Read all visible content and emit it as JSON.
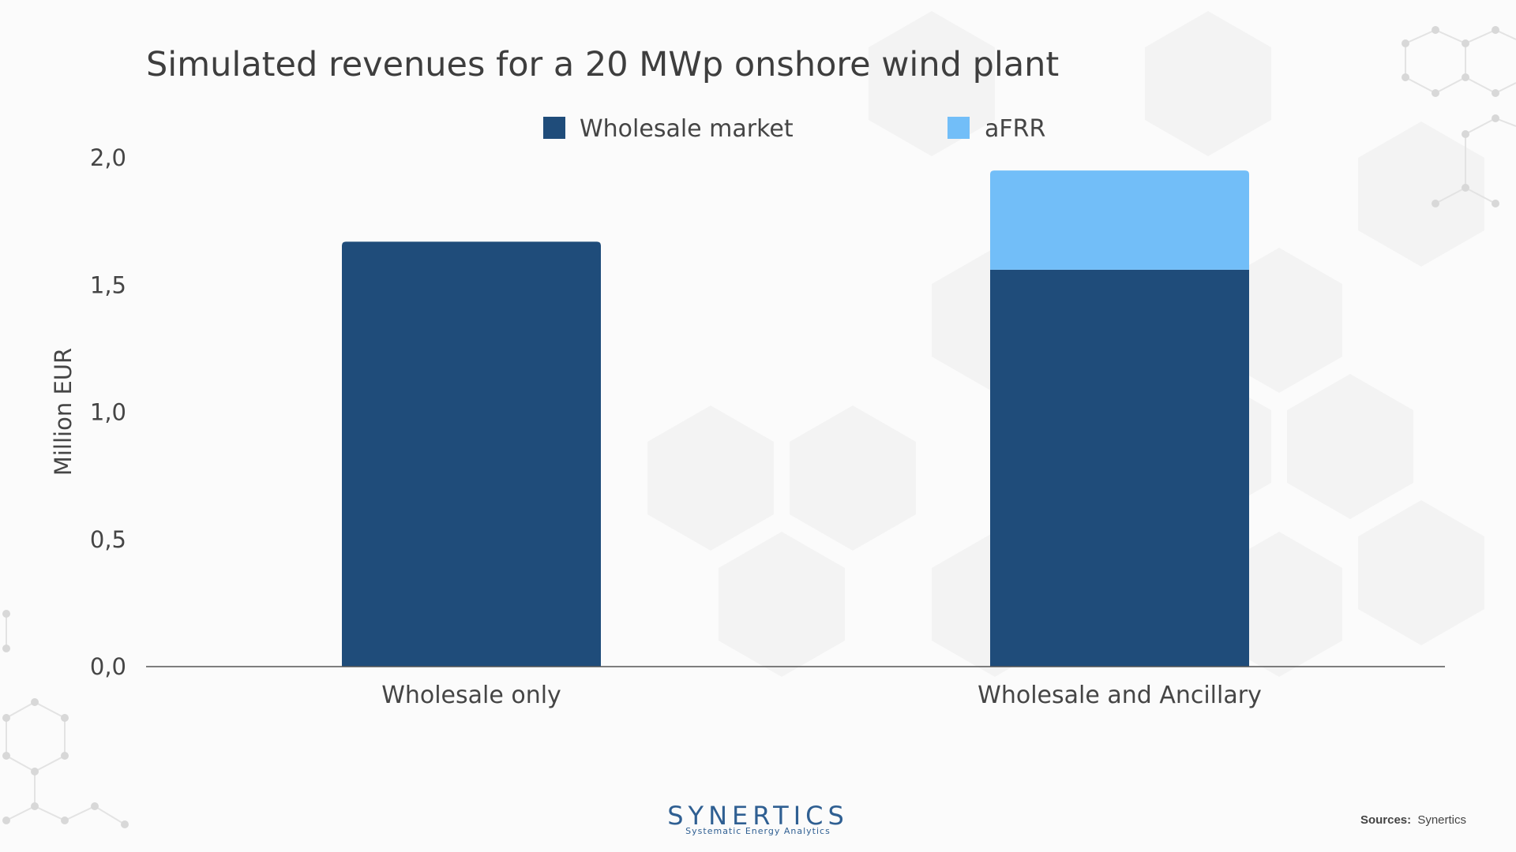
{
  "chart_data": {
    "type": "bar",
    "stacked": true,
    "title": "Simulated revenues for a 20 MWp onshore wind plant",
    "ylabel": "Million EUR",
    "xlabel": "",
    "ylim": [
      0,
      2.0
    ],
    "yticks": [
      "0,0",
      "0,5",
      "1,0",
      "1,5",
      "2,0"
    ],
    "ytick_values": [
      0,
      0.5,
      1.0,
      1.5,
      2.0
    ],
    "categories": [
      "Wholesale only",
      "Wholesale and Ancillary"
    ],
    "series": [
      {
        "name": "Wholesale market",
        "color": "#1f4c7a",
        "values": [
          1.67,
          1.56
        ]
      },
      {
        "name": "aFRR",
        "color": "#72bef8",
        "values": [
          0,
          0.39
        ]
      }
    ],
    "legend_position": "top-center",
    "grid": false
  },
  "branding": {
    "logo_name": "SYNERTICS",
    "logo_tagline": "Systematic Energy Analytics",
    "sources_label": "Sources:",
    "sources_value": "Synertics"
  }
}
